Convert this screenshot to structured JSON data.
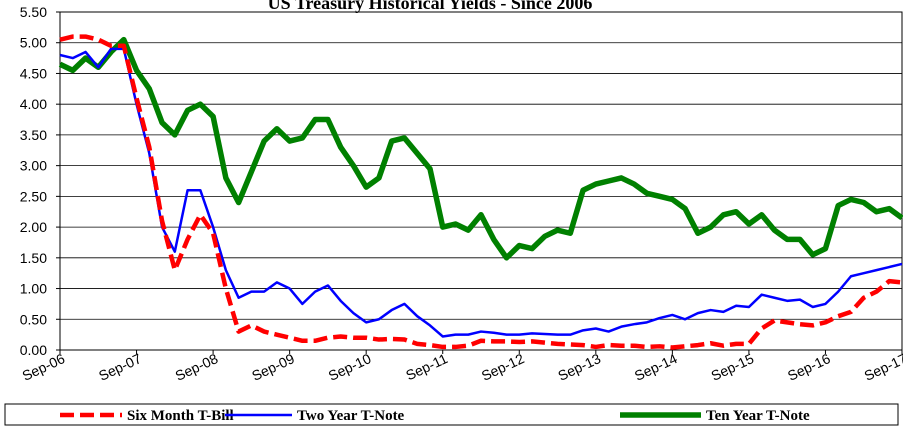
{
  "chart_data": {
    "type": "line",
    "title": "US Treasury Historical Yields - Since 2006",
    "categories": [
      "Sep-06",
      null,
      null,
      null,
      null,
      null,
      "Sep-07",
      null,
      null,
      null,
      null,
      null,
      "Sep-08",
      null,
      null,
      null,
      null,
      null,
      "Sep-09",
      null,
      null,
      null,
      null,
      null,
      "Sep-10",
      null,
      null,
      null,
      null,
      null,
      "Sep-11",
      null,
      null,
      null,
      null,
      null,
      "Sep-12",
      null,
      null,
      null,
      null,
      null,
      "Sep-13",
      null,
      null,
      null,
      null,
      null,
      "Sep-14",
      null,
      null,
      null,
      null,
      null,
      "Sep-15",
      null,
      null,
      null,
      null,
      null,
      "Sep-16",
      null,
      null,
      null,
      null,
      null,
      "Sep-17"
    ],
    "series": [
      {
        "name": "Six Month T-Bill",
        "color": "#ff0000",
        "style": "dashed",
        "values": [
          5.05,
          5.1,
          5.1,
          5.05,
          4.95,
          4.95,
          4.1,
          3.3,
          2.1,
          1.3,
          1.8,
          2.2,
          1.9,
          1.0,
          0.3,
          0.4,
          0.3,
          0.25,
          0.2,
          0.15,
          0.15,
          0.2,
          0.22,
          0.2,
          0.2,
          0.17,
          0.18,
          0.17,
          0.1,
          0.08,
          0.05,
          0.05,
          0.07,
          0.15,
          0.14,
          0.14,
          0.13,
          0.14,
          0.12,
          0.1,
          0.09,
          0.08,
          0.05,
          0.08,
          0.07,
          0.07,
          0.05,
          0.06,
          0.04,
          0.06,
          0.08,
          0.11,
          0.07,
          0.1,
          0.1,
          0.35,
          0.48,
          0.45,
          0.42,
          0.4,
          0.45,
          0.55,
          0.62,
          0.85,
          0.95,
          1.12,
          1.1
        ]
      },
      {
        "name": "Two Year T-Note",
        "color": "#0000ff",
        "style": "thin",
        "values": [
          4.8,
          4.75,
          4.85,
          4.6,
          4.9,
          4.9,
          4.0,
          3.2,
          2.0,
          1.6,
          2.6,
          2.6,
          2.0,
          1.3,
          0.85,
          0.95,
          0.95,
          1.1,
          1.0,
          0.75,
          0.95,
          1.05,
          0.8,
          0.6,
          0.45,
          0.5,
          0.65,
          0.75,
          0.55,
          0.4,
          0.22,
          0.25,
          0.25,
          0.3,
          0.28,
          0.25,
          0.25,
          0.27,
          0.26,
          0.25,
          0.25,
          0.32,
          0.35,
          0.3,
          0.38,
          0.42,
          0.45,
          0.52,
          0.57,
          0.5,
          0.6,
          0.65,
          0.62,
          0.72,
          0.7,
          0.9,
          0.85,
          0.8,
          0.82,
          0.7,
          0.75,
          0.95,
          1.2,
          1.25,
          1.3,
          1.35,
          1.4
        ]
      },
      {
        "name": "Ten Year T-Note",
        "color": "#008000",
        "style": "thick",
        "values": [
          4.65,
          4.55,
          4.75,
          4.6,
          4.85,
          5.05,
          4.55,
          4.25,
          3.7,
          3.5,
          3.9,
          4.0,
          3.8,
          2.8,
          2.4,
          2.9,
          3.4,
          3.6,
          3.4,
          3.45,
          3.75,
          3.75,
          3.3,
          3.0,
          2.65,
          2.8,
          3.4,
          3.45,
          3.2,
          2.95,
          2.0,
          2.05,
          1.95,
          2.2,
          1.8,
          1.5,
          1.7,
          1.65,
          1.85,
          1.95,
          1.9,
          2.6,
          2.7,
          2.75,
          2.8,
          2.7,
          2.55,
          2.5,
          2.45,
          2.3,
          1.9,
          2.0,
          2.2,
          2.25,
          2.05,
          2.2,
          1.95,
          1.8,
          1.8,
          1.55,
          1.65,
          2.35,
          2.45,
          2.4,
          2.25,
          2.3,
          2.15
        ]
      }
    ],
    "ylim": [
      0,
      5.5
    ],
    "yticks": [
      {
        "value": 0,
        "label": "0.00"
      },
      {
        "value": 0.5,
        "label": "0.50"
      },
      {
        "value": 1,
        "label": "1.00"
      },
      {
        "value": 1.5,
        "label": "1.50"
      },
      {
        "value": 2,
        "label": "2.00"
      },
      {
        "value": 2.5,
        "label": "2.50"
      },
      {
        "value": 3,
        "label": "3.00"
      },
      {
        "value": 3.5,
        "label": "3.50"
      },
      {
        "value": 4,
        "label": "4.00"
      },
      {
        "value": 4.5,
        "label": "4.50"
      },
      {
        "value": 5,
        "label": "5.00"
      },
      {
        "value": 5.5,
        "label": "5.50"
      }
    ],
    "grid": true,
    "legend": "bottom"
  }
}
